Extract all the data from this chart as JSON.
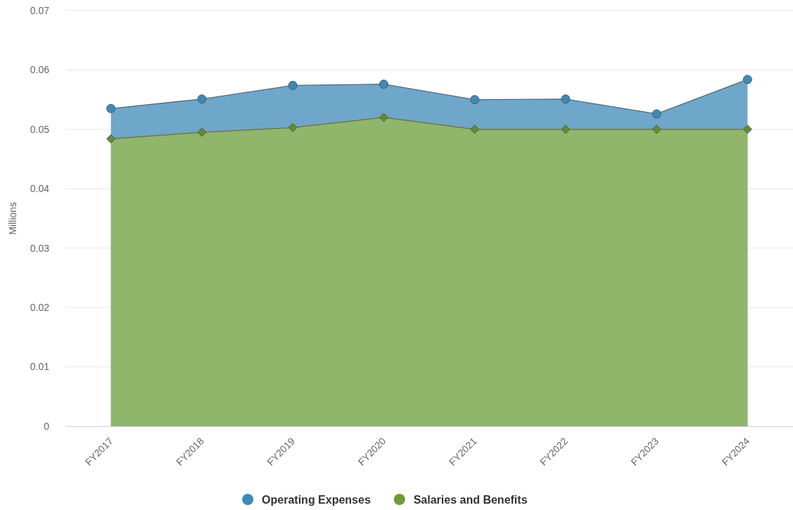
{
  "chart_data": {
    "type": "area",
    "ylabel": "Millions",
    "categories": [
      "FY2017",
      "FY2018",
      "FY2019",
      "FY2020",
      "FY2021",
      "FY2022",
      "FY2023",
      "FY2024"
    ],
    "series": [
      {
        "name": "Operating Expenses",
        "color": "#3d8ab8",
        "marker": "circle",
        "values": [
          0.0535,
          0.0551,
          0.0574,
          0.0576,
          0.055,
          0.0551,
          0.0526,
          0.0584
        ]
      },
      {
        "name": "Salaries and Benefits",
        "color": "#6a9e3a",
        "marker": "diamond",
        "values": [
          0.0484,
          0.0495,
          0.0503,
          0.052,
          0.05,
          0.05,
          0.05,
          0.05
        ]
      }
    ],
    "ylim": [
      0,
      0.07
    ],
    "yticks": [
      0,
      0.01,
      0.02,
      0.03,
      0.04,
      0.05,
      0.06,
      0.07
    ],
    "grid": "y",
    "legend": "bottom"
  }
}
